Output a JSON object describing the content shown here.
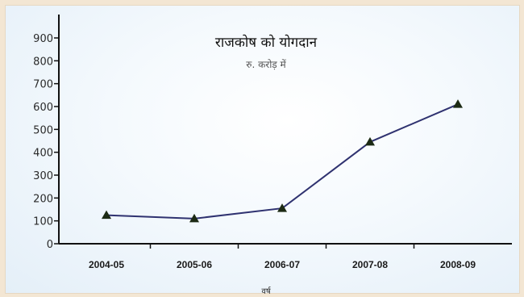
{
  "chart_data": {
    "type": "line",
    "title": "राजकोष को योगदान",
    "subtitle": "रु. करोड़ में",
    "xlabel": "वर्ष",
    "ylabel": "",
    "categories": [
      "2004-05",
      "2005-06",
      "2006-07",
      "2007-08",
      "2008-09"
    ],
    "values": [
      125,
      110,
      155,
      445,
      610
    ],
    "ylim": [
      0,
      900
    ],
    "yticks": [
      0,
      100,
      200,
      300,
      400,
      500,
      600,
      700,
      800,
      900
    ],
    "grid": false,
    "line_color": "#2f3270",
    "marker_color": "#1c2a14"
  }
}
